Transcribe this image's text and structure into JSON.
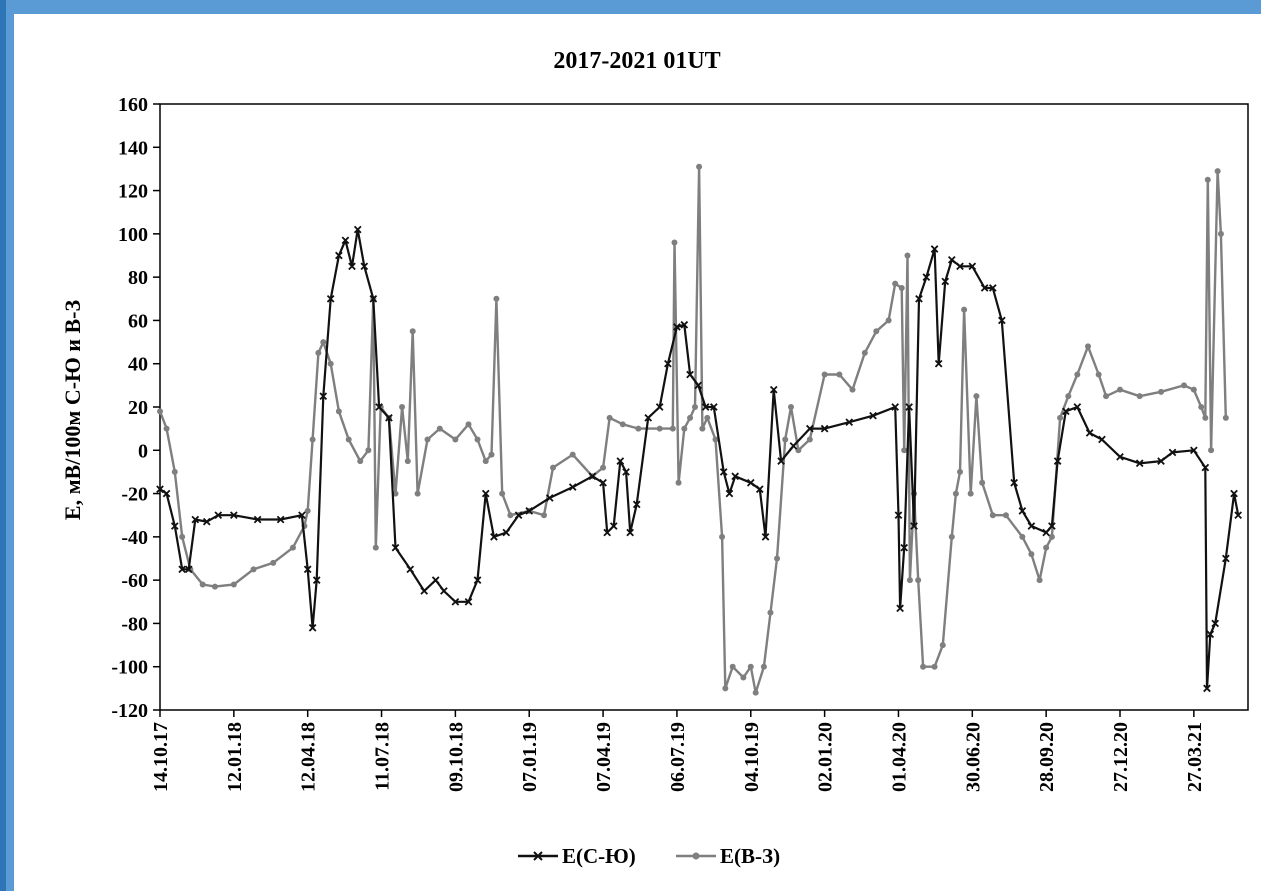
{
  "chart_data": {
    "type": "line",
    "title": "2017-2021 01UT",
    "ylabel": "E, мВ/100м С-Ю и В-З",
    "xlabel": "",
    "ylim": [
      -120,
      160
    ],
    "yticks": [
      160,
      140,
      120,
      100,
      80,
      60,
      40,
      20,
      0,
      -20,
      -40,
      -60,
      -80,
      -100,
      -120
    ],
    "x_range": [
      "2017-10-14",
      "2021-06-01"
    ],
    "x_tick_labels": [
      "14.10.17",
      "12.01.18",
      "12.04.18",
      "11.07.18",
      "09.10.18",
      "07.01.19",
      "07.04.19",
      "06.07.19",
      "04.10.19",
      "02.01.20",
      "01.04.20",
      "30.06.20",
      "28.09.20",
      "27.12.20",
      "27.03.21"
    ],
    "grid": false,
    "legend_position": "bottom",
    "series": [
      {
        "name": "E(С-Ю)",
        "color": "#111111",
        "marker": "x",
        "points": [
          [
            "2017-10-14",
            -18
          ],
          [
            "2017-10-22",
            -20
          ],
          [
            "2017-11-01",
            -35
          ],
          [
            "2017-11-10",
            -55
          ],
          [
            "2017-11-18",
            -55
          ],
          [
            "2017-11-26",
            -32
          ],
          [
            "2017-12-10",
            -33
          ],
          [
            "2017-12-24",
            -30
          ],
          [
            "2018-01-12",
            -30
          ],
          [
            "2018-02-10",
            -32
          ],
          [
            "2018-03-10",
            -32
          ],
          [
            "2018-04-05",
            -30
          ],
          [
            "2018-04-12",
            -55
          ],
          [
            "2018-04-18",
            -82
          ],
          [
            "2018-04-23",
            -60
          ],
          [
            "2018-05-01",
            25
          ],
          [
            "2018-05-10",
            70
          ],
          [
            "2018-05-20",
            90
          ],
          [
            "2018-05-28",
            97
          ],
          [
            "2018-06-05",
            85
          ],
          [
            "2018-06-12",
            102
          ],
          [
            "2018-06-20",
            85
          ],
          [
            "2018-07-01",
            70
          ],
          [
            "2018-07-08",
            20
          ],
          [
            "2018-07-20",
            15
          ],
          [
            "2018-07-28",
            -45
          ],
          [
            "2018-08-15",
            -55
          ],
          [
            "2018-09-01",
            -65
          ],
          [
            "2018-09-15",
            -60
          ],
          [
            "2018-09-25",
            -65
          ],
          [
            "2018-10-09",
            -70
          ],
          [
            "2018-10-25",
            -70
          ],
          [
            "2018-11-05",
            -60
          ],
          [
            "2018-11-15",
            -20
          ],
          [
            "2018-11-25",
            -40
          ],
          [
            "2018-12-10",
            -38
          ],
          [
            "2018-12-25",
            -30
          ],
          [
            "2019-01-07",
            -28
          ],
          [
            "2019-02-01",
            -22
          ],
          [
            "2019-03-01",
            -17
          ],
          [
            "2019-03-25",
            -12
          ],
          [
            "2019-04-07",
            -15
          ],
          [
            "2019-04-12",
            -38
          ],
          [
            "2019-04-20",
            -35
          ],
          [
            "2019-04-28",
            -5
          ],
          [
            "2019-05-05",
            -10
          ],
          [
            "2019-05-10",
            -38
          ],
          [
            "2019-05-18",
            -25
          ],
          [
            "2019-06-01",
            15
          ],
          [
            "2019-06-15",
            20
          ],
          [
            "2019-06-25",
            40
          ],
          [
            "2019-07-06",
            57
          ],
          [
            "2019-07-15",
            58
          ],
          [
            "2019-07-22",
            35
          ],
          [
            "2019-08-01",
            30
          ],
          [
            "2019-08-10",
            20
          ],
          [
            "2019-08-20",
            20
          ],
          [
            "2019-09-01",
            -10
          ],
          [
            "2019-09-08",
            -20
          ],
          [
            "2019-09-15",
            -12
          ],
          [
            "2019-10-04",
            -15
          ],
          [
            "2019-10-15",
            -18
          ],
          [
            "2019-10-22",
            -40
          ],
          [
            "2019-11-01",
            28
          ],
          [
            "2019-11-10",
            -5
          ],
          [
            "2019-11-25",
            2
          ],
          [
            "2019-12-15",
            10
          ],
          [
            "2020-01-02",
            10
          ],
          [
            "2020-02-01",
            13
          ],
          [
            "2020-03-01",
            16
          ],
          [
            "2020-03-28",
            20
          ],
          [
            "2020-04-01",
            -30
          ],
          [
            "2020-04-03",
            -73
          ],
          [
            "2020-04-08",
            -45
          ],
          [
            "2020-04-14",
            20
          ],
          [
            "2020-04-20",
            -35
          ],
          [
            "2020-04-26",
            70
          ],
          [
            "2020-05-05",
            80
          ],
          [
            "2020-05-15",
            93
          ],
          [
            "2020-05-20",
            40
          ],
          [
            "2020-05-28",
            78
          ],
          [
            "2020-06-05",
            88
          ],
          [
            "2020-06-15",
            85
          ],
          [
            "2020-06-30",
            85
          ],
          [
            "2020-07-15",
            75
          ],
          [
            "2020-07-25",
            75
          ],
          [
            "2020-08-05",
            60
          ],
          [
            "2020-08-20",
            -15
          ],
          [
            "2020-08-30",
            -28
          ],
          [
            "2020-09-10",
            -35
          ],
          [
            "2020-09-28",
            -38
          ],
          [
            "2020-10-05",
            -35
          ],
          [
            "2020-10-12",
            -5
          ],
          [
            "2020-10-22",
            18
          ],
          [
            "2020-11-05",
            20
          ],
          [
            "2020-11-20",
            8
          ],
          [
            "2020-12-05",
            5
          ],
          [
            "2020-12-27",
            -3
          ],
          [
            "2021-01-20",
            -6
          ],
          [
            "2021-02-15",
            -5
          ],
          [
            "2021-03-01",
            -1
          ],
          [
            "2021-03-27",
            0
          ],
          [
            "2021-04-10",
            -8
          ],
          [
            "2021-04-12",
            -110
          ],
          [
            "2021-04-16",
            -85
          ],
          [
            "2021-04-22",
            -80
          ],
          [
            "2021-05-05",
            -50
          ],
          [
            "2021-05-15",
            -20
          ],
          [
            "2021-05-20",
            -30
          ]
        ]
      },
      {
        "name": "E(В-З)",
        "color": "#7f7f7f",
        "marker": "o",
        "points": [
          [
            "2017-10-14",
            18
          ],
          [
            "2017-10-22",
            10
          ],
          [
            "2017-11-01",
            -10
          ],
          [
            "2017-11-10",
            -40
          ],
          [
            "2017-11-20",
            -55
          ],
          [
            "2017-12-05",
            -62
          ],
          [
            "2017-12-20",
            -63
          ],
          [
            "2018-01-12",
            -62
          ],
          [
            "2018-02-05",
            -55
          ],
          [
            "2018-03-01",
            -52
          ],
          [
            "2018-03-25",
            -45
          ],
          [
            "2018-04-08",
            -35
          ],
          [
            "2018-04-12",
            -28
          ],
          [
            "2018-04-18",
            5
          ],
          [
            "2018-04-25",
            45
          ],
          [
            "2018-05-01",
            50
          ],
          [
            "2018-05-10",
            40
          ],
          [
            "2018-05-20",
            18
          ],
          [
            "2018-06-01",
            5
          ],
          [
            "2018-06-15",
            -5
          ],
          [
            "2018-06-25",
            0
          ],
          [
            "2018-07-01",
            70
          ],
          [
            "2018-07-04",
            -45
          ],
          [
            "2018-07-10",
            20
          ],
          [
            "2018-07-20",
            15
          ],
          [
            "2018-07-28",
            -20
          ],
          [
            "2018-08-05",
            20
          ],
          [
            "2018-08-12",
            -5
          ],
          [
            "2018-08-18",
            55
          ],
          [
            "2018-08-24",
            -20
          ],
          [
            "2018-09-05",
            5
          ],
          [
            "2018-09-20",
            10
          ],
          [
            "2018-10-09",
            5
          ],
          [
            "2018-10-25",
            12
          ],
          [
            "2018-11-05",
            5
          ],
          [
            "2018-11-15",
            -5
          ],
          [
            "2018-11-22",
            -2
          ],
          [
            "2018-11-28",
            70
          ],
          [
            "2018-12-05",
            -20
          ],
          [
            "2018-12-15",
            -30
          ],
          [
            "2019-01-07",
            -28
          ],
          [
            "2019-01-25",
            -30
          ],
          [
            "2019-02-05",
            -8
          ],
          [
            "2019-03-01",
            -2
          ],
          [
            "2019-03-25",
            -12
          ],
          [
            "2019-04-07",
            -8
          ],
          [
            "2019-04-15",
            15
          ],
          [
            "2019-05-01",
            12
          ],
          [
            "2019-05-20",
            10
          ],
          [
            "2019-06-15",
            10
          ],
          [
            "2019-07-01",
            10
          ],
          [
            "2019-07-03",
            96
          ],
          [
            "2019-07-08",
            -15
          ],
          [
            "2019-07-15",
            10
          ],
          [
            "2019-07-22",
            15
          ],
          [
            "2019-07-28",
            20
          ],
          [
            "2019-08-02",
            131
          ],
          [
            "2019-08-06",
            10
          ],
          [
            "2019-08-12",
            15
          ],
          [
            "2019-08-22",
            5
          ],
          [
            "2019-08-30",
            -40
          ],
          [
            "2019-09-03",
            -110
          ],
          [
            "2019-09-12",
            -100
          ],
          [
            "2019-09-25",
            -105
          ],
          [
            "2019-10-04",
            -100
          ],
          [
            "2019-10-10",
            -112
          ],
          [
            "2019-10-20",
            -100
          ],
          [
            "2019-10-28",
            -75
          ],
          [
            "2019-11-05",
            -50
          ],
          [
            "2019-11-15",
            5
          ],
          [
            "2019-11-22",
            20
          ],
          [
            "2019-12-01",
            0
          ],
          [
            "2019-12-15",
            5
          ],
          [
            "2020-01-02",
            35
          ],
          [
            "2020-01-20",
            35
          ],
          [
            "2020-02-05",
            28
          ],
          [
            "2020-02-20",
            45
          ],
          [
            "2020-03-05",
            55
          ],
          [
            "2020-03-20",
            60
          ],
          [
            "2020-03-28",
            77
          ],
          [
            "2020-04-05",
            75
          ],
          [
            "2020-04-08",
            0
          ],
          [
            "2020-04-12",
            90
          ],
          [
            "2020-04-15",
            -60
          ],
          [
            "2020-04-20",
            -20
          ],
          [
            "2020-04-25",
            -60
          ],
          [
            "2020-05-01",
            -100
          ],
          [
            "2020-05-15",
            -100
          ],
          [
            "2020-05-25",
            -90
          ],
          [
            "2020-06-05",
            -40
          ],
          [
            "2020-06-10",
            -20
          ],
          [
            "2020-06-15",
            -10
          ],
          [
            "2020-06-20",
            65
          ],
          [
            "2020-06-28",
            -20
          ],
          [
            "2020-07-05",
            25
          ],
          [
            "2020-07-12",
            -15
          ],
          [
            "2020-07-25",
            -30
          ],
          [
            "2020-08-10",
            -30
          ],
          [
            "2020-08-30",
            -40
          ],
          [
            "2020-09-10",
            -48
          ],
          [
            "2020-09-20",
            -60
          ],
          [
            "2020-09-28",
            -45
          ],
          [
            "2020-10-05",
            -40
          ],
          [
            "2020-10-15",
            15
          ],
          [
            "2020-10-25",
            25
          ],
          [
            "2020-11-05",
            35
          ],
          [
            "2020-11-18",
            48
          ],
          [
            "2020-12-01",
            35
          ],
          [
            "2020-12-10",
            25
          ],
          [
            "2020-12-27",
            28
          ],
          [
            "2021-01-20",
            25
          ],
          [
            "2021-02-15",
            27
          ],
          [
            "2021-03-15",
            30
          ],
          [
            "2021-03-27",
            28
          ],
          [
            "2021-04-05",
            20
          ],
          [
            "2021-04-10",
            15
          ],
          [
            "2021-04-13",
            125
          ],
          [
            "2021-04-17",
            0
          ],
          [
            "2021-04-25",
            129
          ],
          [
            "2021-04-29",
            100
          ],
          [
            "2021-05-05",
            15
          ]
        ]
      }
    ]
  }
}
